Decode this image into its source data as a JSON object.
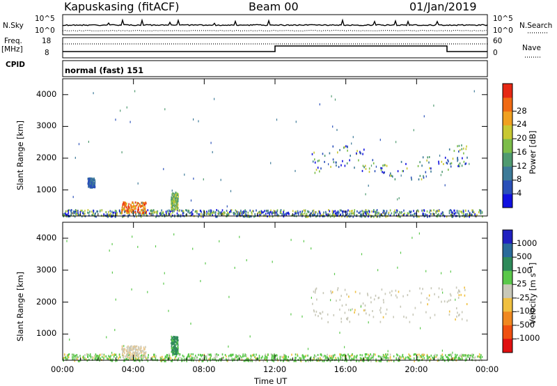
{
  "header": {
    "station": "Kapuskasing (fitACF)",
    "beam": "Beam 00",
    "date": "01/Jan/2019"
  },
  "strip_panels": {
    "nsky_label": "N.Sky",
    "nsky_ticks": [
      "10^5",
      "10^0"
    ],
    "nsearch_label": "N.Search",
    "nsearch_ticks": [
      "10^5",
      "10^0"
    ],
    "freq_label": "Freq.",
    "freq_unit": "[MHz]",
    "freq_ticks": [
      "18",
      "8"
    ],
    "nave_label": "Nave",
    "nave_ticks": [
      "60",
      "0"
    ],
    "cpid_label": "CPID",
    "cpid_value": "normal (fast) 151"
  },
  "chart_data": [
    {
      "type": "heatmap",
      "panel": "power",
      "ylabel": "Slant Range [km]",
      "ylim": [
        180,
        4500
      ],
      "yticks": [
        1000,
        2000,
        3000,
        4000
      ],
      "x_ticks": [
        "00:00",
        "04:00",
        "08:00",
        "12:00",
        "16:00",
        "20:00",
        "00:00"
      ],
      "xlim_hours": [
        0,
        24
      ],
      "colorbar": {
        "label": "Power [dB]",
        "ticks": [
          "4",
          "8",
          "12",
          "16",
          "20",
          "24",
          "28"
        ],
        "range": [
          0,
          30
        ],
        "colors": [
          "#1010e0",
          "#2a50b8",
          "#3d7a98",
          "#4f9a70",
          "#7cbd4a",
          "#c8c832",
          "#f0a020",
          "#f06a14",
          "#e62814"
        ]
      },
      "regions": [
        {
          "t": [
            0.0,
            23.7
          ],
          "r": [
            180,
            400
          ],
          "level": "mixed"
        },
        {
          "t": [
            3.3,
            4.7
          ],
          "r": [
            300,
            650
          ],
          "level": "high"
        },
        {
          "t": [
            6.1,
            6.5
          ],
          "r": [
            400,
            950
          ],
          "level": "medium"
        },
        {
          "t": [
            1.4,
            1.8
          ],
          "r": [
            1100,
            1400
          ],
          "level": "low"
        },
        {
          "t": [
            14.0,
            22.9
          ],
          "r": [
            1400,
            2500
          ],
          "level": "mixed"
        }
      ]
    },
    {
      "type": "heatmap",
      "panel": "velocity",
      "ylabel": "Slant Range [km]",
      "ylim": [
        180,
        4500
      ],
      "yticks": [
        1000,
        2000,
        3000,
        4000
      ],
      "x_ticks": [
        "00:00",
        "04:00",
        "08:00",
        "12:00",
        "16:00",
        "20:00",
        "00:00"
      ],
      "xlabel": "Time UT",
      "colorbar": {
        "label": "Velocity [m s⁻¹]",
        "ticks": [
          "1000",
          "500",
          "100",
          "25",
          "-25",
          "-100",
          "-500",
          "-1000"
        ],
        "colors": [
          "#2020c0",
          "#2a6a9a",
          "#2e8a5a",
          "#5ac84a",
          "#c8c8b8",
          "#f0c040",
          "#f08820",
          "#f05010",
          "#e01010"
        ]
      },
      "regions": [
        {
          "t": [
            0.0,
            23.7
          ],
          "r": [
            180,
            400
          ],
          "level": "ground-scatter-green"
        },
        {
          "t": [
            3.3,
            4.7
          ],
          "r": [
            300,
            650
          ],
          "level": "grey-orange"
        },
        {
          "t": [
            6.1,
            6.5
          ],
          "r": [
            400,
            950
          ],
          "level": "green"
        },
        {
          "t": [
            14.0,
            22.9
          ],
          "r": [
            1400,
            2500
          ],
          "level": "grey"
        }
      ]
    }
  ]
}
